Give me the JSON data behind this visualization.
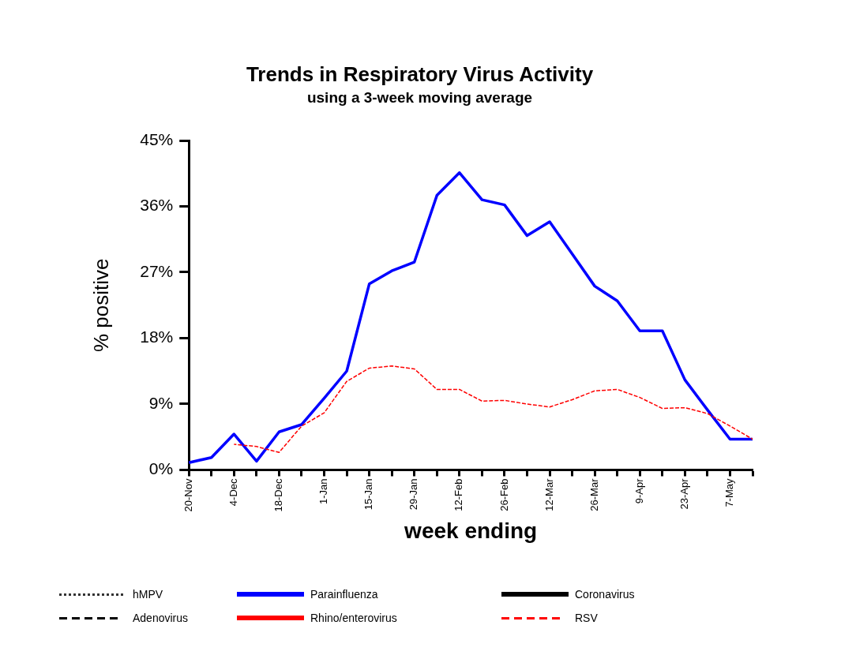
{
  "chart_data": {
    "type": "line",
    "title": "Trends in Respiratory Virus Activity",
    "subtitle": "using a 3-week moving average",
    "xlabel": "week ending",
    "ylabel": "% positive",
    "categories": [
      "20-Nov",
      null,
      "4-Dec",
      null,
      "18-Dec",
      null,
      "1-Jan",
      null,
      "15-Jan",
      null,
      "29-Jan",
      null,
      "12-Feb",
      null,
      "26-Feb",
      null,
      "12-Mar",
      null,
      "26-Mar",
      null,
      "9-Apr",
      null,
      "23-Apr",
      null,
      "7-May",
      null
    ],
    "ylim": [
      0,
      45
    ],
    "yticks": [
      {
        "value": 0,
        "label": "0%"
      },
      {
        "value": 9,
        "label": "9%"
      },
      {
        "value": 18,
        "label": "18%"
      },
      {
        "value": 27,
        "label": "27%"
      },
      {
        "value": 36,
        "label": "36%"
      },
      {
        "value": 45,
        "label": "45%"
      }
    ],
    "grid": false,
    "legend": "bottom",
    "marker": "none",
    "series": [
      {
        "name": "hMPV",
        "color": "#333333",
        "line_style": "dotted",
        "values": [
          null,
          null,
          null,
          null,
          null,
          null,
          null,
          null,
          null,
          null,
          null,
          null,
          null,
          null,
          null,
          null,
          null,
          null,
          null,
          null,
          null,
          null,
          null,
          null,
          null,
          null
        ]
      },
      {
        "name": "Parainfluenza",
        "color": "#0000ff",
        "line_style": "solid",
        "values": [
          1.0,
          1.7,
          4.9,
          1.2,
          5.2,
          6.2,
          9.8,
          13.5,
          25.4,
          27.2,
          28.4,
          37.5,
          40.6,
          36.9,
          36.2,
          32.0,
          33.9,
          29.5,
          25.1,
          23.1,
          19.0,
          19.0,
          12.3,
          8.2,
          4.2,
          4.2
        ]
      },
      {
        "name": "Coronavirus",
        "color": "#000000",
        "line_style": "solid",
        "values": [
          null,
          null,
          null,
          null,
          null,
          null,
          null,
          null,
          null,
          null,
          null,
          null,
          null,
          null,
          null,
          null,
          null,
          null,
          null,
          null,
          null,
          null,
          null,
          null,
          null,
          null
        ]
      },
      {
        "name": "Adenovirus",
        "color": "#000000",
        "line_style": "dashed",
        "values": [
          null,
          null,
          null,
          null,
          null,
          null,
          null,
          null,
          null,
          null,
          null,
          null,
          null,
          null,
          null,
          null,
          null,
          null,
          null,
          null,
          null,
          null,
          null,
          null,
          null,
          null
        ]
      },
      {
        "name": "Rhino/enterovirus",
        "color": "#ff0000",
        "line_style": "solid",
        "values": [
          null,
          null,
          null,
          null,
          null,
          null,
          null,
          null,
          null,
          null,
          null,
          null,
          null,
          null,
          null,
          null,
          null,
          null,
          null,
          null,
          null,
          null,
          null,
          null,
          null,
          null
        ]
      },
      {
        "name": "RSV",
        "color": "#ff0000",
        "line_style": "dashed",
        "values": [
          null,
          null,
          3.5,
          3.2,
          2.4,
          6.0,
          7.8,
          12.1,
          13.9,
          14.2,
          13.8,
          11.0,
          11.0,
          9.4,
          9.5,
          9.0,
          8.6,
          9.6,
          10.8,
          11.0,
          9.9,
          8.4,
          8.5,
          7.7,
          6.0,
          4.2
        ]
      }
    ]
  }
}
